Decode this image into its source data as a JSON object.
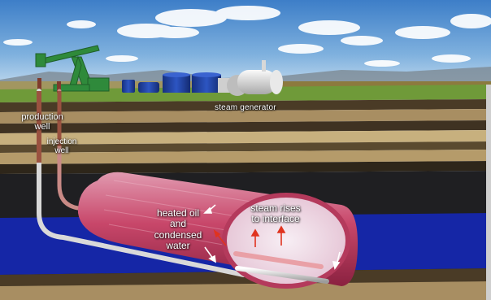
{
  "labels": {
    "production_well": [
      "production",
      "well"
    ],
    "injection_well": [
      "injection",
      "well"
    ],
    "steam_generator": "steam generator",
    "heated_oil": [
      "heated oil",
      "and",
      "condensed",
      "water"
    ],
    "steam_rises": [
      "steam rises",
      "to interface"
    ]
  },
  "colors": {
    "sky_top": "#3e7fc9",
    "sky_bottom": "#bcd8ef",
    "grass": "#6f9a39",
    "pump_jack": "#2f8a3b",
    "tank": "#1f3f9a",
    "steam_generator": "#e6e6e6",
    "reservoir_blue": "#1526a6",
    "chamber_pink": "#c8476a",
    "chamber_interior": "#efe0ea",
    "pipe": "#e8e8e8",
    "steam_arrow": "#e0331f"
  }
}
